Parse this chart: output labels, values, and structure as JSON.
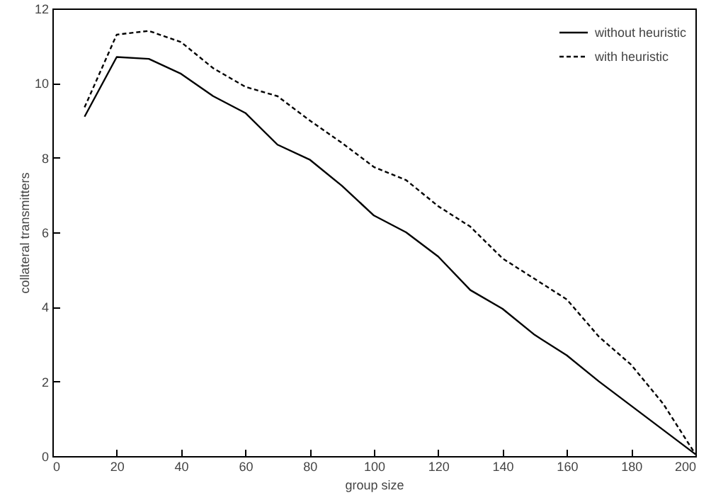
{
  "chart_data": {
    "type": "line",
    "xlabel": "group size",
    "ylabel": "collateral transmitters",
    "x": [
      10,
      20,
      30,
      40,
      50,
      60,
      70,
      80,
      90,
      100,
      110,
      120,
      130,
      140,
      150,
      160,
      170,
      180,
      190,
      200
    ],
    "series": [
      {
        "name": "without heuristic",
        "color": "#000000",
        "line_style": "solid",
        "values": [
          9.1,
          10.7,
          10.65,
          10.25,
          9.65,
          9.2,
          8.35,
          7.95,
          7.25,
          6.45,
          6.0,
          5.35,
          4.45,
          3.95,
          3.25,
          2.7,
          2.0,
          1.35,
          0.7,
          0.05
        ]
      },
      {
        "name": "with heuristic",
        "color": "#000000",
        "line_style": "dashed",
        "values": [
          9.35,
          11.3,
          11.4,
          11.1,
          10.4,
          9.9,
          9.65,
          9.0,
          8.4,
          7.75,
          7.4,
          6.7,
          6.15,
          5.3,
          4.75,
          4.2,
          3.2,
          2.45,
          1.4,
          0.05
        ]
      }
    ],
    "xlim": [
      0,
      200
    ],
    "xticks": [
      0,
      20,
      40,
      60,
      80,
      100,
      120,
      140,
      160,
      180,
      200
    ],
    "ylim": [
      0,
      12
    ],
    "yticks": [
      0,
      2,
      4,
      6,
      8,
      10,
      12
    ],
    "legend": "top right",
    "grid": false,
    "marker": "none"
  }
}
